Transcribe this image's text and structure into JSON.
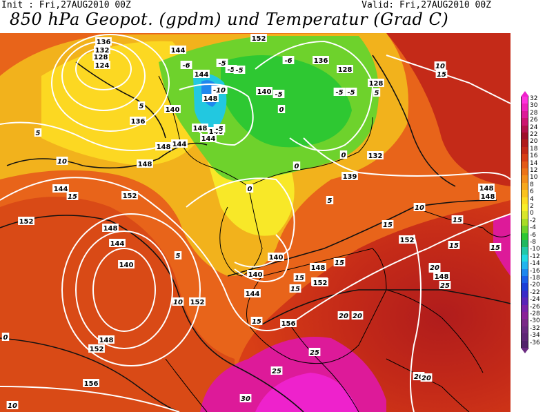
{
  "header": {
    "init_text": "Init : Fri,27AUG2010 00Z",
    "valid_text": "Valid: Fri,27AUG2010 00Z",
    "title": "850 hPa Geopot. (gpdm) und Temperatur (Grad C)"
  },
  "legend": {
    "ticks": [
      "32",
      "30",
      "28",
      "26",
      "24",
      "22",
      "20",
      "18",
      "16",
      "14",
      "12",
      "10",
      "8",
      "6",
      "4",
      "2",
      "0",
      "-2",
      "-4",
      "-6",
      "-8",
      "-10",
      "-12",
      "-14",
      "-16",
      "-18",
      "-20",
      "-22",
      "-24",
      "-26",
      "-28",
      "-30",
      "-32",
      "-34",
      "-36"
    ],
    "colors": [
      "#ff33dd",
      "#ee22bb",
      "#dd1a99",
      "#cc1470",
      "#b3104a",
      "#9e0e2a",
      "#b01c1c",
      "#c42a18",
      "#d83e16",
      "#e45a18",
      "#ec7418",
      "#f28e1a",
      "#f7a81c",
      "#fac21e",
      "#fcdc22",
      "#f8ee28",
      "#d8e62a",
      "#a8dc28",
      "#6ed22c",
      "#2ec832",
      "#20b860",
      "#22c8a8",
      "#22d8e0",
      "#22b4ee",
      "#1e88ee",
      "#1a5ee8",
      "#1a3ed8",
      "#3a2ac8",
      "#5a24b8",
      "#7a22a8",
      "#8a2298",
      "#7a2a88",
      "#6a2a80",
      "#5e2676",
      "#52226c"
    ]
  },
  "map": {
    "geopotential_labels": [
      "152",
      "136",
      "132",
      "128",
      "124",
      "144",
      "144",
      "136",
      "140",
      "128",
      "128",
      "140",
      "148",
      "140",
      "148",
      "144",
      "136",
      "148",
      "144",
      "144",
      "148",
      "152",
      "152",
      "148",
      "144",
      "140",
      "152",
      "144",
      "148",
      "152",
      "156",
      "140",
      "152",
      "140",
      "148",
      "152",
      "156",
      "132",
      "139",
      "148",
      "148",
      "152",
      "148"
    ],
    "temperature_labels": [
      "-5",
      "-5",
      "-5",
      "-5",
      "-5",
      "-10",
      "-6",
      "-5",
      "-6",
      "-5",
      "5",
      "0",
      "0",
      "0",
      "0",
      "5",
      "10",
      "15",
      "5",
      "5",
      "10",
      "10",
      "15",
      "15",
      "15",
      "15",
      "15",
      "15",
      "15",
      "10",
      "15",
      "15",
      "15",
      "20",
      "20",
      "20",
      "25",
      "25",
      "25",
      "20",
      "20",
      "30",
      "10",
      "5",
      "0"
    ]
  }
}
